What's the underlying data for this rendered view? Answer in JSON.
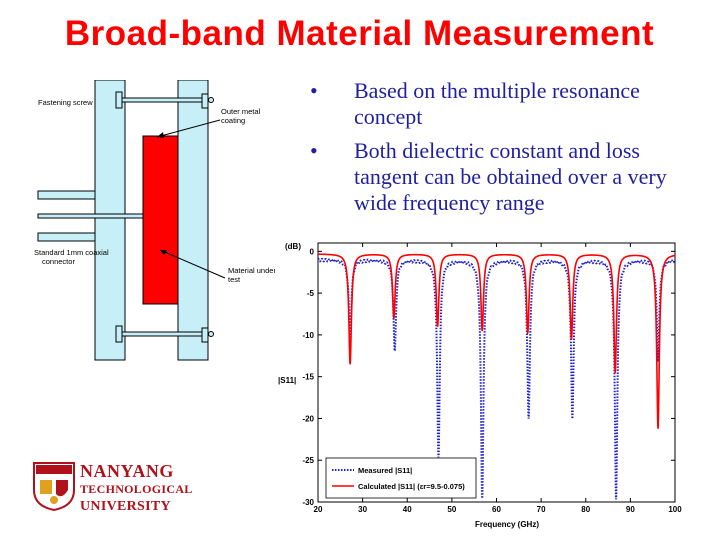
{
  "slide": {
    "title": "Broad-band Material Measurement",
    "bullets": [
      "Based on the multiple resonance concept",
      "Both dielectric constant and loss tangent can be obtained over a very wide frequency range"
    ],
    "bullet_symbol": "•"
  },
  "diagram": {
    "labels": {
      "fastening_screw": "Fastening screw",
      "outer_metal_line1": "Outer metal",
      "outer_metal_line2": "coating",
      "connector_line1": "Standard 1mm coaxial",
      "connector_line2": "connector",
      "material_line1": "Material under",
      "material_line2": "test"
    },
    "colors": {
      "frame": "#c6eff7",
      "sample": "#ff0000",
      "outline": "#000000"
    }
  },
  "logo": {
    "line1": "NANYANG",
    "line2": "TECHNOLOGICAL",
    "line3": "UNIVERSITY",
    "emblem": "ntu-crest-icon"
  },
  "chart_data": {
    "type": "line",
    "xlabel": "Frequency (GHz)",
    "ylabel": "|S11|",
    "yunit": "(dB)",
    "xlim": [
      20,
      100
    ],
    "ylim": [
      -30,
      1
    ],
    "xticks": [
      20,
      30,
      40,
      50,
      60,
      70,
      80,
      90,
      100
    ],
    "yticks": [
      0,
      -5,
      -10,
      -15,
      -20,
      -25,
      -30
    ],
    "grid": false,
    "legend_position": "bottom-left",
    "series": [
      {
        "name": "Measured |S11|",
        "style": "dotted",
        "color": "#1f1fd0",
        "baseline": -1.0,
        "dips": [
          {
            "x": 27.2,
            "y": -10.5
          },
          {
            "x": 37.2,
            "y": -12.0
          },
          {
            "x": 47.0,
            "y": -24.5
          },
          {
            "x": 56.8,
            "y": -29.5
          },
          {
            "x": 67.2,
            "y": -20.0
          },
          {
            "x": 77.0,
            "y": -20.0
          },
          {
            "x": 86.8,
            "y": -29.5
          },
          {
            "x": 96.2,
            "y": -13.0
          }
        ]
      },
      {
        "name": "Calculated |S11| (εr=9.5-0.075)",
        "style": "solid",
        "color": "#ff0000",
        "baseline": -0.3,
        "dips": [
          {
            "x": 27.2,
            "y": -13.5
          },
          {
            "x": 37.0,
            "y": -8.0
          },
          {
            "x": 46.8,
            "y": -9.0
          },
          {
            "x": 56.8,
            "y": -9.5
          },
          {
            "x": 67.0,
            "y": -9.8
          },
          {
            "x": 76.8,
            "y": -10.5
          },
          {
            "x": 86.6,
            "y": -14.5
          },
          {
            "x": 96.2,
            "y": -21.2
          }
        ]
      }
    ]
  }
}
